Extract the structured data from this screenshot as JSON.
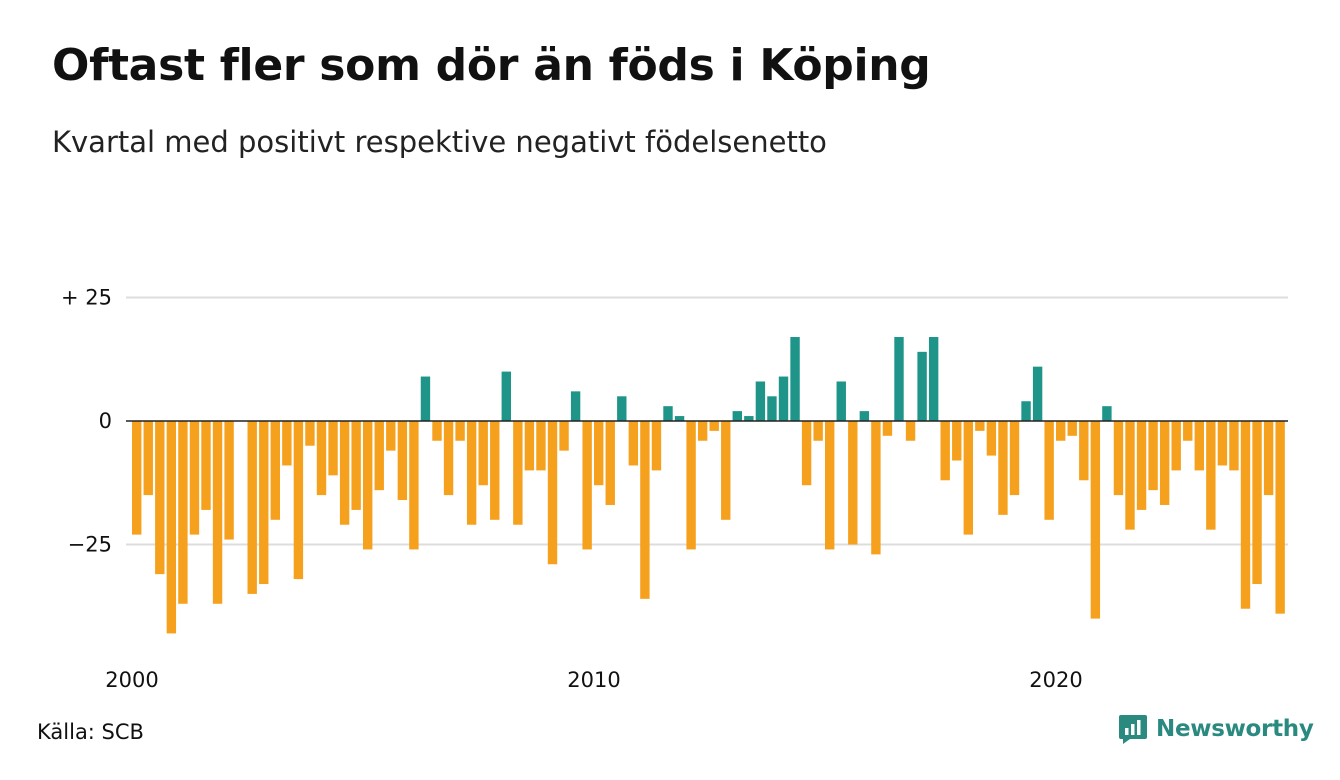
{
  "title": "Oftast fler som dör än föds i Köping",
  "subtitle": "Kvartal med positivt respektive negativt födelsenetto",
  "source": "Källa: SCB",
  "brand": {
    "name": "Newsworthy",
    "icon": "newsworthy-logo-icon"
  },
  "colors": {
    "positive": "#1f9488",
    "negative": "#f6a11e",
    "grid": "#dddddd",
    "zero_line": "#222222",
    "brand": "#2a8a80"
  },
  "chart_data": {
    "type": "bar",
    "title": "Oftast fler som dör än föds i Köping",
    "subtitle": "Kvartal med positivt respektive negativt födelsenetto",
    "x_start": 2000,
    "periods_per_year": 4,
    "x_ticks": [
      {
        "value": 2000,
        "label": "2000"
      },
      {
        "value": 2010,
        "label": "2010"
      },
      {
        "value": 2020,
        "label": "2020"
      }
    ],
    "y_ticks": [
      {
        "value": 25,
        "label": "+ 25"
      },
      {
        "value": 0,
        "label": "0"
      },
      {
        "value": -25,
        "label": "−25"
      }
    ],
    "ylim": [
      -45,
      25
    ],
    "grid": true,
    "values": [
      -23,
      -15,
      -31,
      -43,
      -37,
      -23,
      -18,
      -37,
      -24,
      0,
      -35,
      -33,
      -20,
      -9,
      -32,
      -5,
      -15,
      -11,
      -21,
      -18,
      -26,
      -14,
      -6,
      -16,
      -26,
      9,
      -4,
      -15,
      -4,
      -21,
      -13,
      -20,
      10,
      -21,
      -10,
      -10,
      -29,
      -6,
      6,
      -26,
      -13,
      -17,
      5,
      -9,
      -36,
      -10,
      3,
      1,
      -26,
      -4,
      -2,
      -20,
      2,
      1,
      8,
      5,
      9,
      17,
      -13,
      -4,
      -26,
      8,
      -25,
      2,
      -27,
      -3,
      17,
      -4,
      14,
      17,
      -12,
      -8,
      -23,
      -2,
      -7,
      -19,
      -15,
      4,
      11,
      -20,
      -4,
      -3,
      -12,
      -40,
      3,
      -15,
      -22,
      -18,
      -14,
      -17,
      -10,
      -4,
      -10,
      -22,
      -9,
      -10,
      -38,
      -33,
      -15,
      -39
    ]
  }
}
